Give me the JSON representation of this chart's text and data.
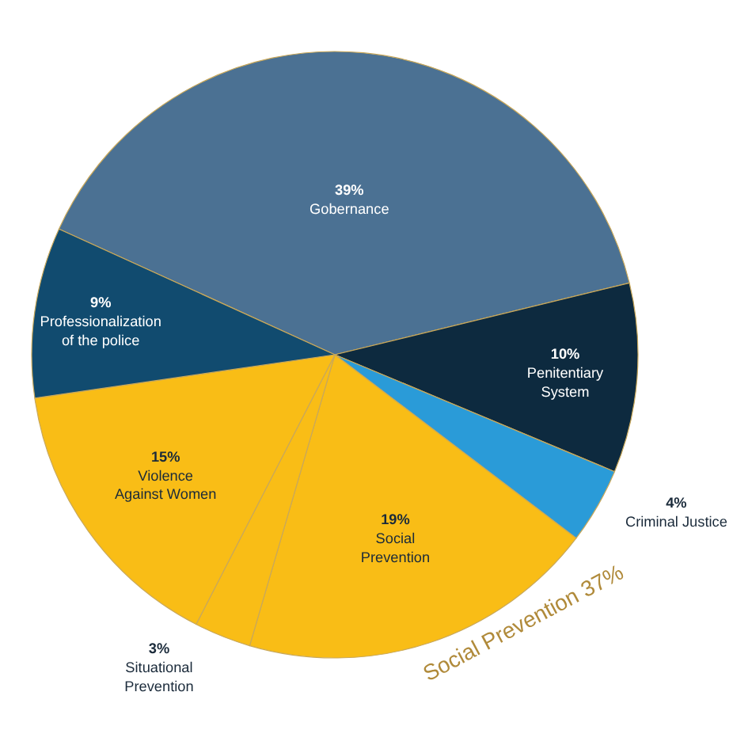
{
  "chart_data": {
    "type": "pie",
    "categories": [
      "Gobernance",
      "Penitentiary System",
      "Criminal Justice",
      "Social Prevention",
      "Situational Prevention",
      "Violence Against Women",
      "Professionalization of the police"
    ],
    "values": [
      39,
      10,
      4,
      19,
      3,
      15,
      9
    ],
    "colors": [
      "#4b7193",
      "#0d2a3f",
      "#2a9bd8",
      "#f9bd16",
      "#f9bd16",
      "#f9bd16",
      "#114b6f"
    ],
    "value_labels": [
      "39%",
      "10%",
      "4%",
      "19%",
      "3%",
      "15%",
      "9%"
    ],
    "legend": false,
    "annotations": [
      "Social Prevention 37%"
    ]
  }
}
